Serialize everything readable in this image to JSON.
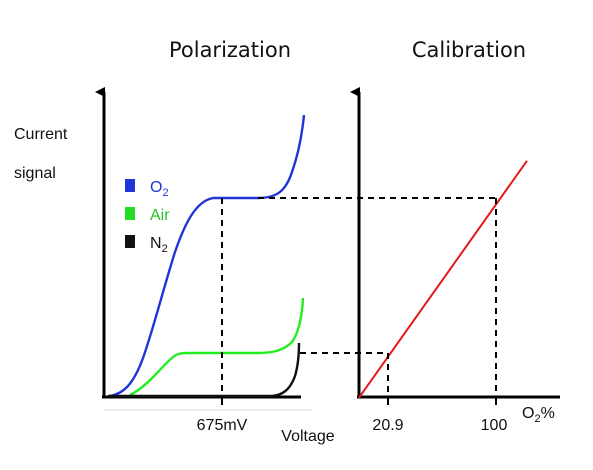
{
  "chart_data": [
    {
      "type": "line",
      "title": "Polarization",
      "ylabel_lines": [
        "Current",
        "signal"
      ],
      "xlabel": "Voltage",
      "x_ticks": [
        {
          "label": "675mV",
          "value": 675
        }
      ],
      "legend_placement": "upper-left",
      "legend": [
        {
          "name": "O",
          "sub": "2",
          "swatch_color": "#1f35d8",
          "text_color": "#1f35d8"
        },
        {
          "name": "Air",
          "sub": "",
          "swatch_color": "#22dd22",
          "text_color": "#22c322"
        },
        {
          "name": "N",
          "sub": "2",
          "swatch_color": "#111111",
          "text_color": "#111111"
        }
      ],
      "series": [
        {
          "name": "O2",
          "color": "#1f35d8"
        },
        {
          "name": "Air",
          "color": "#22ee22"
        },
        {
          "name": "N2",
          "color": "#111111"
        }
      ]
    },
    {
      "type": "line",
      "title": "Calibration",
      "xlabel": "O2%",
      "xlabel_parts": {
        "main": "O",
        "sub": "2",
        "suffix": "%"
      },
      "x_ticks": [
        {
          "label": "20.9",
          "value": 20.9
        },
        {
          "label": "100",
          "value": 100
        }
      ],
      "series": [
        {
          "name": "calibration",
          "color": "#e41a1a",
          "x": [
            0,
            100
          ],
          "y": [
            0,
            100
          ]
        }
      ]
    }
  ]
}
